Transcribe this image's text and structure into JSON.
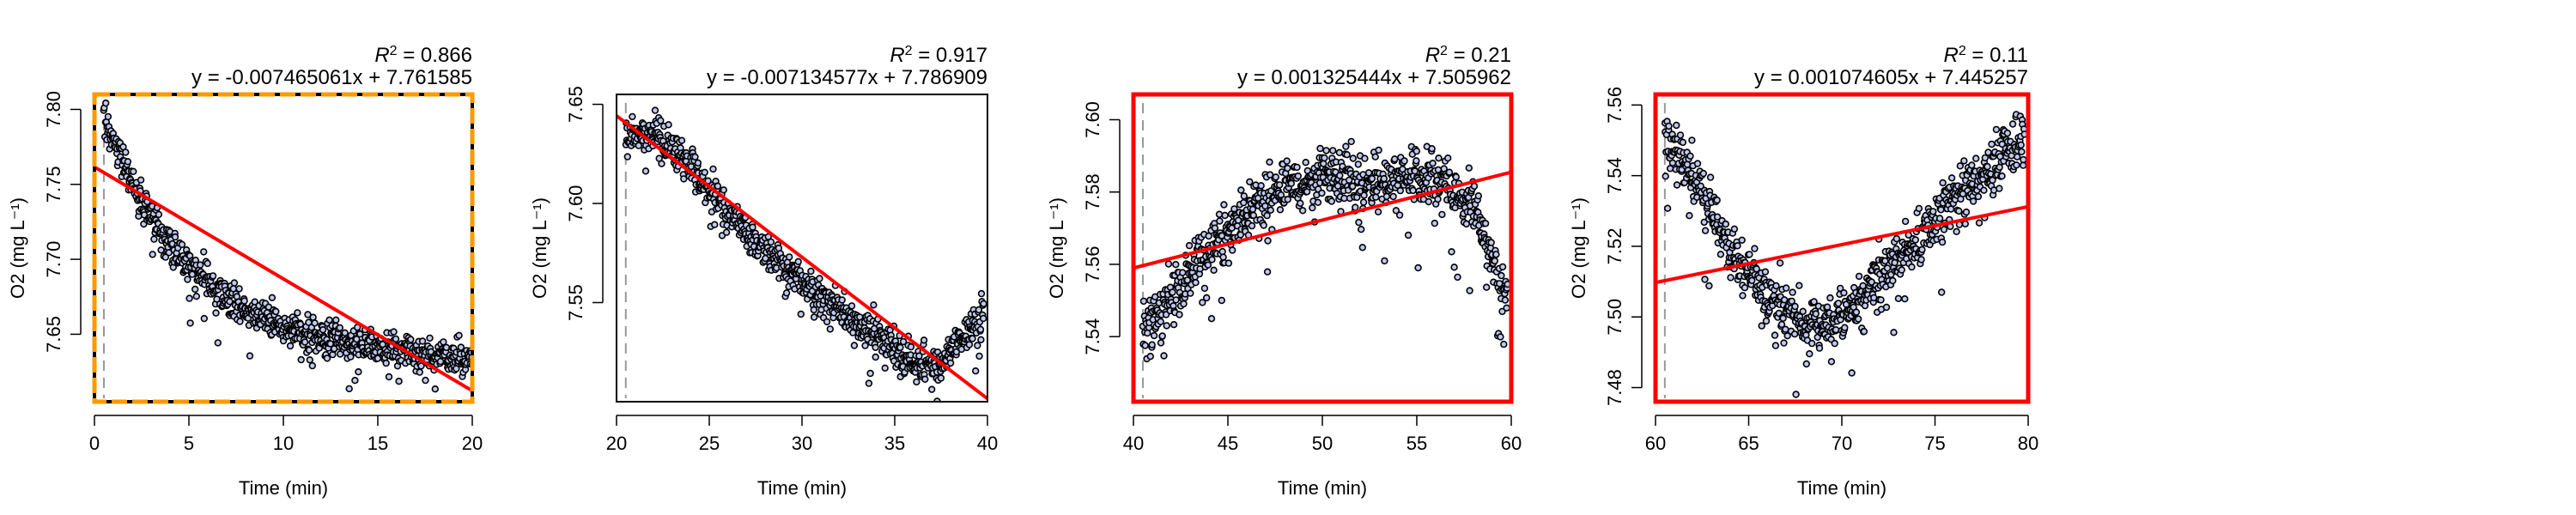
{
  "figure": {
    "panel_count": 4
  },
  "chart_data": [
    {
      "type": "scatter",
      "title": "",
      "r2_label": "R",
      "r2_value": "= 0.866",
      "equation": "y = -0.007465061x + 7.761585",
      "xlabel": "Time (min)",
      "ylabel": "O2 (mg L⁻¹)",
      "xlim": [
        0,
        20
      ],
      "ylim": [
        7.605,
        7.81
      ],
      "xticks": [
        0,
        5,
        10,
        15,
        20
      ],
      "yticks": [
        7.65,
        7.7,
        7.75,
        7.8
      ],
      "ytick_labels": [
        "7.65",
        "7.70",
        "7.75",
        "7.80"
      ],
      "slope": -0.007465061,
      "intercept": 7.761585,
      "marker_x": 0.5,
      "border_style": "orange-dashed",
      "point_shape": {
        "mode": "decay",
        "start": 7.795,
        "end": 7.632,
        "rate": 0.22,
        "floor": 7.64,
        "noise": 0.012
      },
      "x_range_points": [
        0.5,
        20
      ]
    },
    {
      "type": "scatter",
      "title": "",
      "r2_label": "R",
      "r2_value": "= 0.917",
      "equation": "y = -0.007134577x + 7.786909",
      "xlabel": "Time (min)",
      "ylabel": "O2 (mg L⁻¹)",
      "xlim": [
        20,
        40
      ],
      "ylim": [
        7.5,
        7.655
      ],
      "xticks": [
        20,
        25,
        30,
        35,
        40
      ],
      "yticks": [
        7.55,
        7.6,
        7.65
      ],
      "ytick_labels": [
        "7.55",
        "7.60",
        "7.65"
      ],
      "slope": -0.007134577,
      "intercept": 7.786909,
      "marker_x": 20.5,
      "border_style": "black",
      "point_shape": {
        "mode": "piecewise",
        "pts": [
          [
            20.5,
            7.635
          ],
          [
            22,
            7.635
          ],
          [
            24,
            7.62
          ],
          [
            27,
            7.585
          ],
          [
            30,
            7.56
          ],
          [
            33,
            7.54
          ],
          [
            36,
            7.52
          ],
          [
            37.5,
            7.52
          ],
          [
            39.8,
            7.545
          ]
        ],
        "noise": 0.009
      },
      "x_range_points": [
        20.5,
        39.8
      ]
    },
    {
      "type": "scatter",
      "title": "",
      "r2_label": "R",
      "r2_value": "= 0.21",
      "equation": "y = 0.001325444x + 7.505962",
      "xlabel": "Time (min)",
      "ylabel": "O2 (mg L⁻¹)",
      "xlim": [
        40,
        60
      ],
      "ylim": [
        7.522,
        7.607
      ],
      "xticks": [
        40,
        45,
        50,
        55,
        60
      ],
      "yticks": [
        7.54,
        7.56,
        7.58,
        7.6
      ],
      "ytick_labels": [
        "7.54",
        "7.56",
        "7.58",
        "7.60"
      ],
      "slope": 0.001325444,
      "intercept": 7.505962,
      "marker_x": 40.5,
      "border_style": "red",
      "point_shape": {
        "mode": "piecewise",
        "pts": [
          [
            40.5,
            7.542
          ],
          [
            42,
            7.55
          ],
          [
            44,
            7.565
          ],
          [
            47,
            7.578
          ],
          [
            50,
            7.585
          ],
          [
            53,
            7.583
          ],
          [
            56,
            7.585
          ],
          [
            58,
            7.575
          ],
          [
            59.8,
            7.55
          ]
        ],
        "noise": 0.008
      },
      "x_range_points": [
        40.5,
        59.8
      ]
    },
    {
      "type": "scatter",
      "title": "",
      "r2_label": "R",
      "r2_value": "= 0.11",
      "equation": "y = 0.001074605x + 7.445257",
      "xlabel": "Time (min)",
      "ylabel": "O2 (mg L⁻¹)",
      "xlim": [
        60,
        80
      ],
      "ylim": [
        7.476,
        7.563
      ],
      "xticks": [
        60,
        65,
        70,
        75,
        80
      ],
      "yticks": [
        7.48,
        7.5,
        7.52,
        7.54,
        7.56
      ],
      "ytick_labels": [
        "7.48",
        "7.50",
        "7.52",
        "7.54",
        "7.56"
      ],
      "slope": 0.001074605,
      "intercept": 7.445257,
      "marker_x": 60.5,
      "border_style": "red",
      "point_shape": {
        "mode": "piecewise",
        "pts": [
          [
            60.5,
            7.55
          ],
          [
            62,
            7.54
          ],
          [
            64,
            7.52
          ],
          [
            66,
            7.507
          ],
          [
            68,
            7.497
          ],
          [
            70,
            7.5
          ],
          [
            72,
            7.51
          ],
          [
            75,
            7.527
          ],
          [
            78,
            7.543
          ],
          [
            79.8,
            7.55
          ]
        ],
        "noise": 0.008
      },
      "x_range_points": [
        60.5,
        79.8
      ]
    }
  ],
  "colors": {
    "fit_line": "#ff0000",
    "points_fill": "#bfc8ee",
    "points_stroke": "#000000",
    "marker_line": "#999999",
    "orange_border": "#ff9900",
    "red_border": "#ff0000",
    "black_border": "#000000"
  }
}
